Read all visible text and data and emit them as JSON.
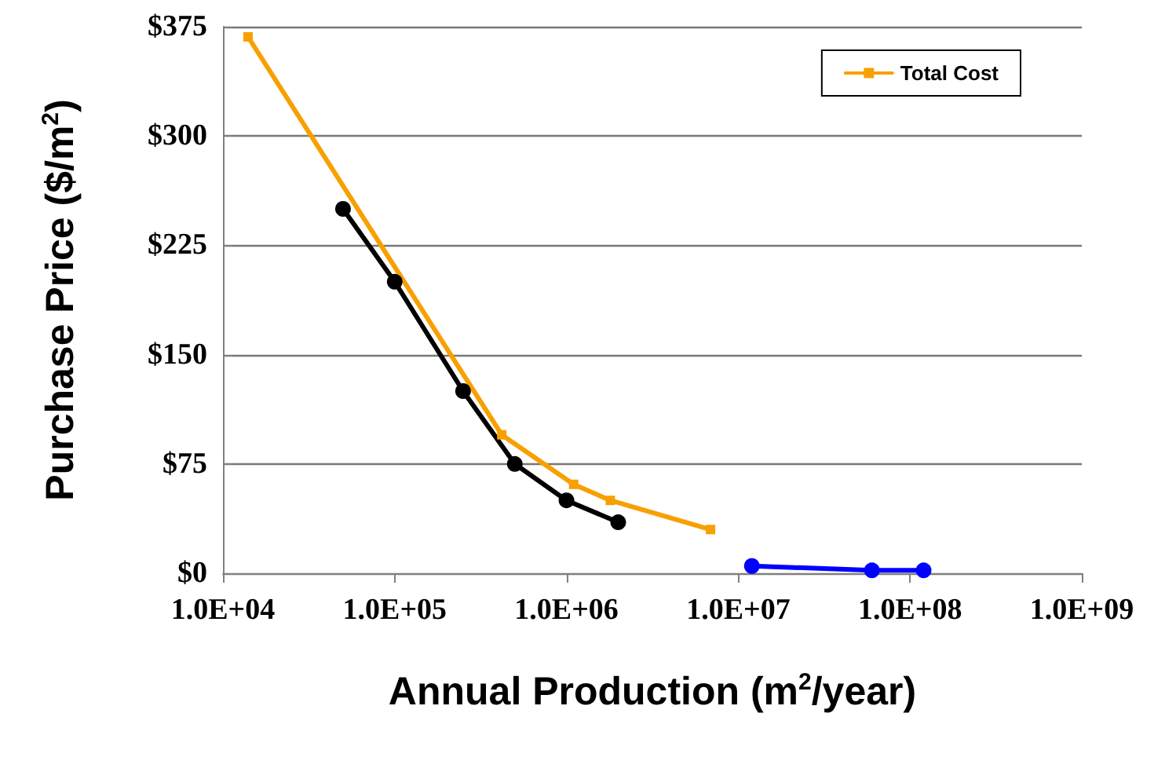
{
  "chart_data": {
    "type": "line",
    "xlabel": "Annual Production (m$^{2}$/year)",
    "ylabel": "Purchase Price ($/m$^{2}$)",
    "log": "x",
    "xlim": [
      10000,
      1000000000
    ],
    "xticks": [
      {
        "value": 10000,
        "label": "1.0E+04"
      },
      {
        "value": 100000,
        "label": "1.0E+05"
      },
      {
        "value": 1000000,
        "label": "1.0E+06"
      },
      {
        "value": 10000000,
        "label": "1.0E+07"
      },
      {
        "value": 100000000,
        "label": "1.0E+08"
      },
      {
        "value": 1000000000,
        "label": "1.0E+09"
      }
    ],
    "ylim": [
      0,
      375
    ],
    "yticks": [
      {
        "value": 0,
        "label": "$0"
      },
      {
        "value": 75,
        "label": "$75"
      },
      {
        "value": 150,
        "label": "$150"
      },
      {
        "value": 225,
        "label": "$225"
      },
      {
        "value": 300,
        "label": "$300"
      },
      {
        "value": 375,
        "label": "$375"
      }
    ],
    "grid": "y",
    "legend": "top right",
    "series": [
      {
        "name": "Total Cost",
        "color": "#f7a000",
        "marker": "square",
        "x": [
          14000,
          420000,
          1100000,
          1800000,
          6900000
        ],
        "values": [
          368,
          95,
          61,
          50,
          30
        ]
      },
      {
        "color": "#000000",
        "marker": "circle",
        "x": [
          50000,
          100000,
          250000,
          500000,
          1000000,
          2000000
        ],
        "values": [
          250,
          200,
          125,
          75,
          50,
          35
        ]
      },
      {
        "color": "#0000ff",
        "marker": "circle",
        "x": [
          12000000,
          60000000,
          120000000
        ],
        "values": [
          5,
          2,
          2
        ]
      }
    ]
  }
}
